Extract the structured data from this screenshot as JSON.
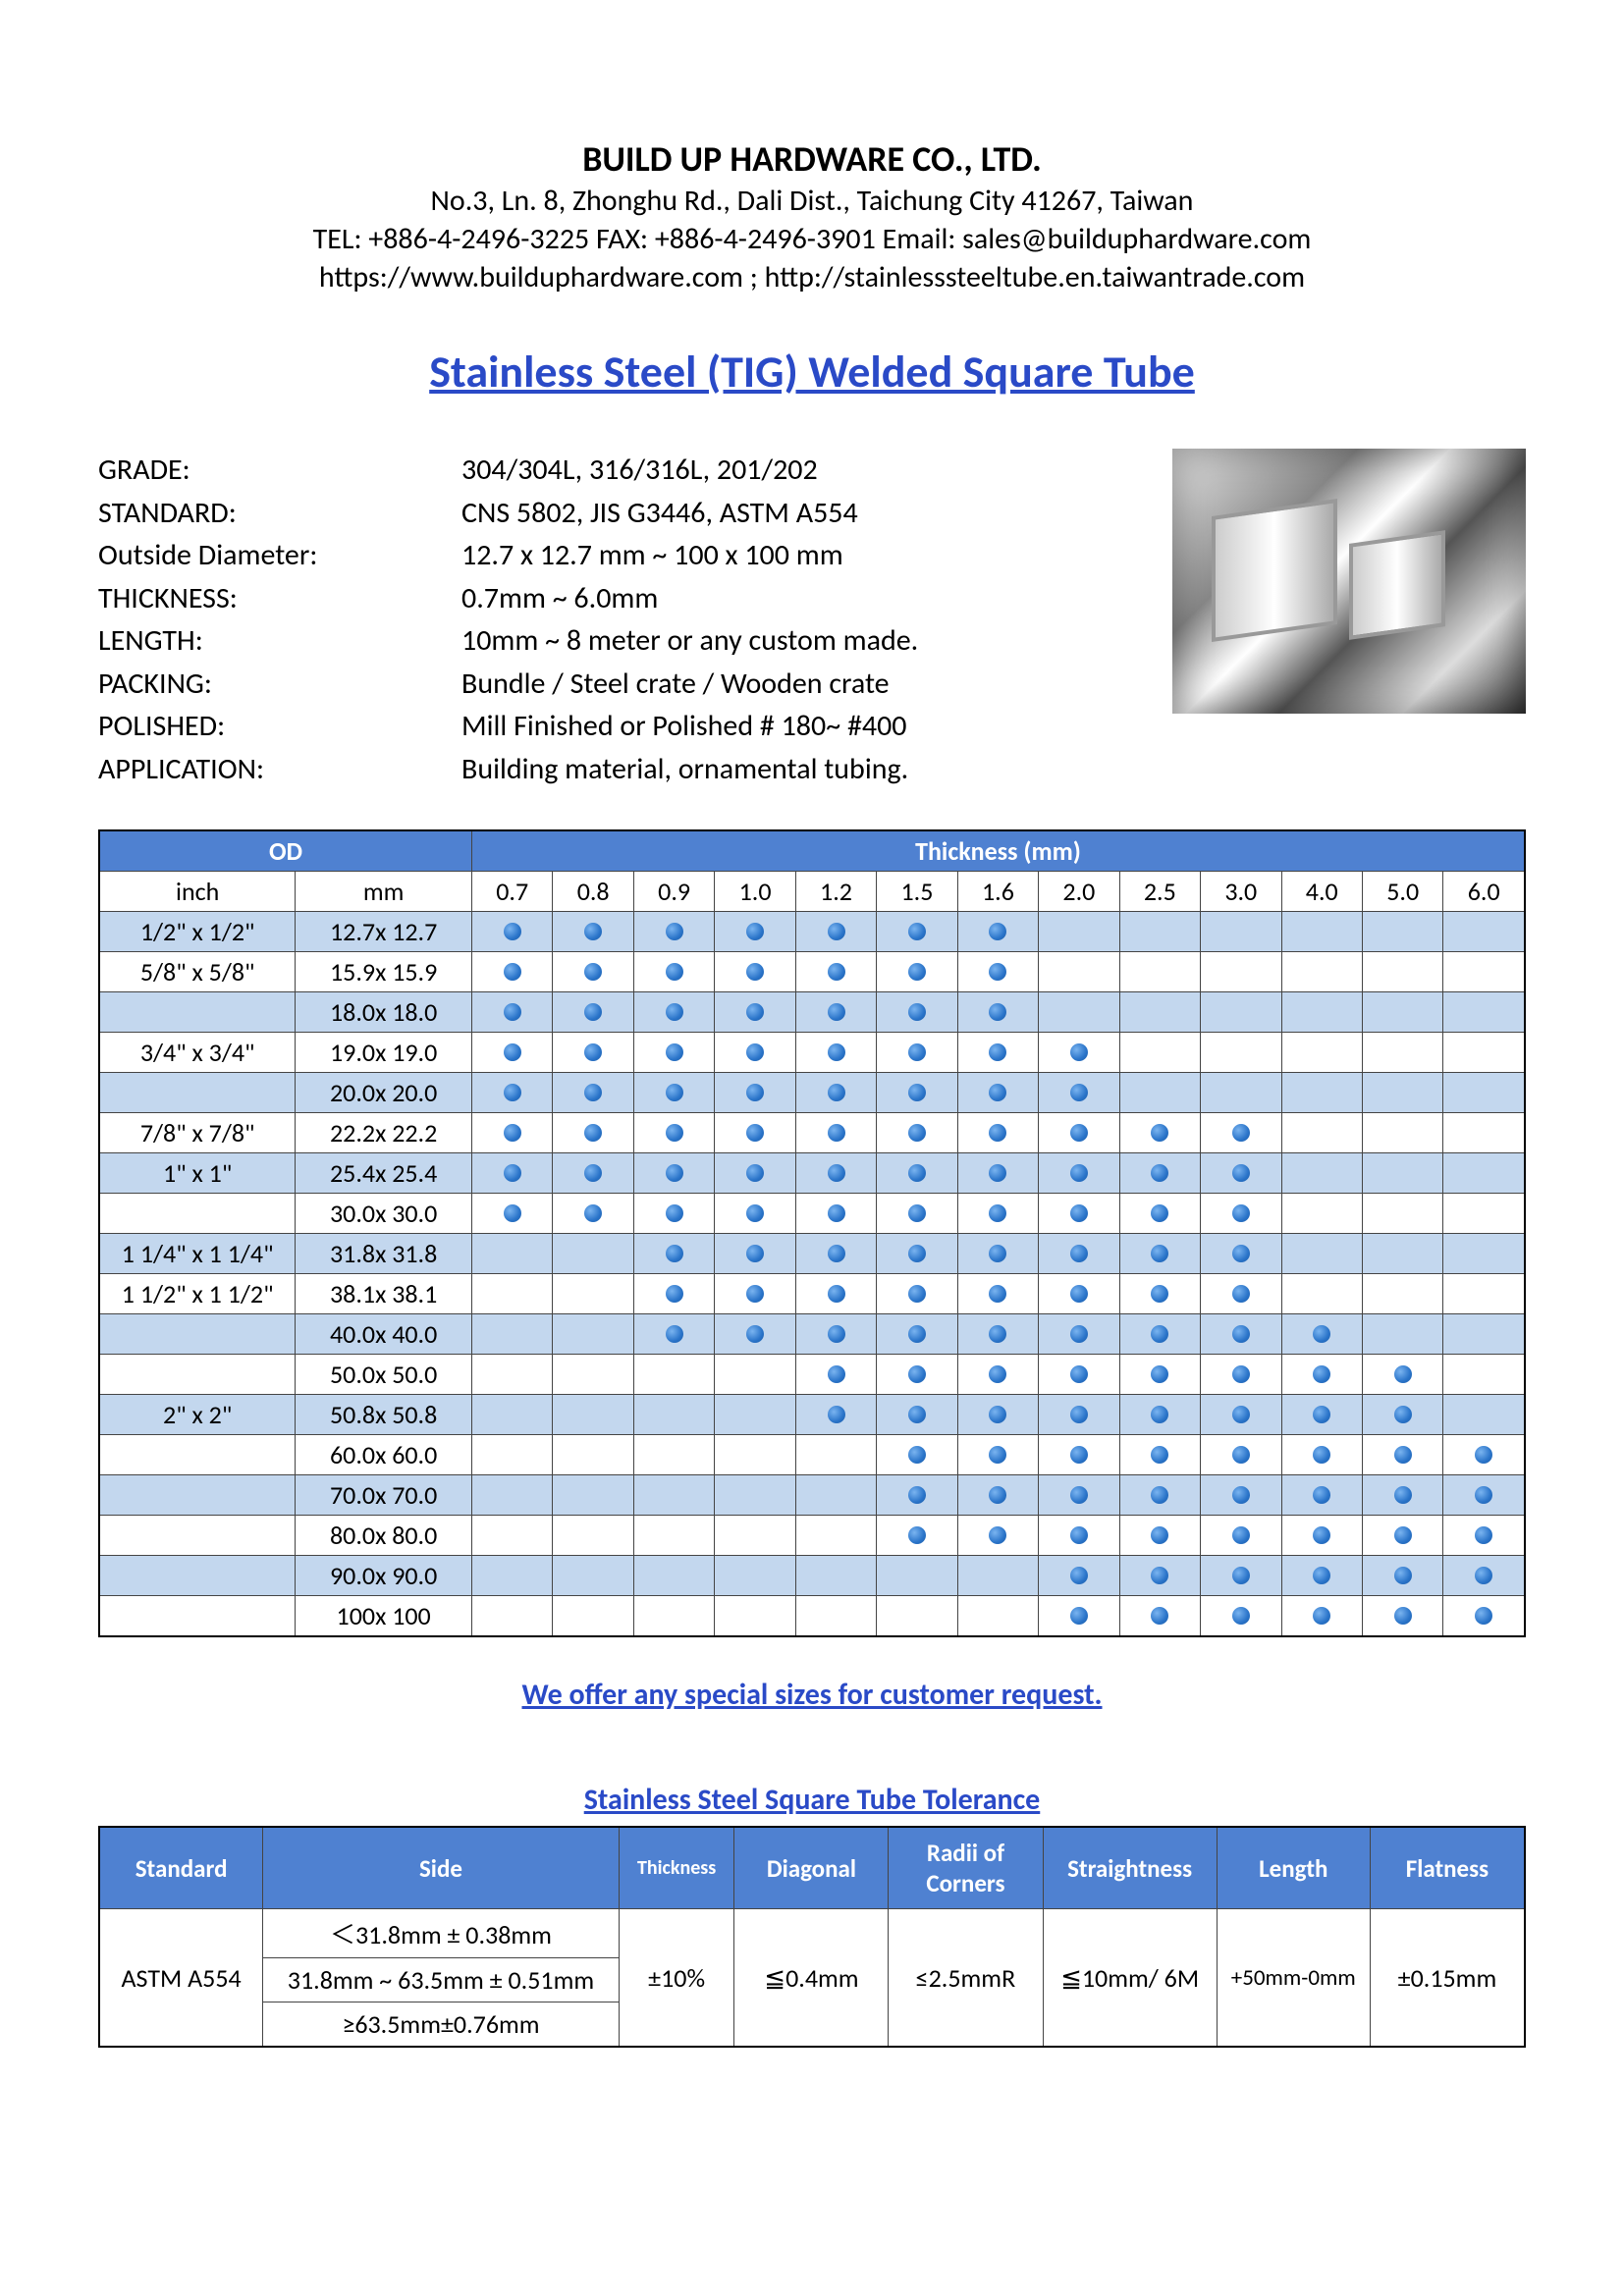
{
  "header": {
    "company": "BUILD UP HARDWARE CO., LTD.",
    "address": "No.3, Ln. 8, Zhonghu Rd., Dali Dist., Taichung City 41267, Taiwan",
    "contact": "TEL: +886-4-2496-3225  FAX: +886-4-2496-3901  Email: sales@builduphardware.com",
    "web": "https://www.builduphardware.com ;  http://stainlesssteeltube.en.taiwantrade.com"
  },
  "title": "Stainless Steel (TIG) Welded Square Tube",
  "specs": [
    {
      "label": "GRADE:",
      "value": "304/304L, 316/316L, 201/202"
    },
    {
      "label": "STANDARD:",
      "value": "CNS 5802, JIS G3446, ASTM A554"
    },
    {
      "label": "Outside Diameter:",
      "value": "12.7 x 12.7 mm ~ 100 x 100 mm"
    },
    {
      "label": "THICKNESS:",
      "value": "0.7mm ~ 6.0mm"
    },
    {
      "label": "LENGTH:",
      "value": "10mm ~ 8 meter or any custom made."
    },
    {
      "label": "PACKING:",
      "value": "Bundle / Steel crate / Wooden crate"
    },
    {
      "label": "POLISHED:",
      "value": "Mill Finished or Polished # 180~ #400"
    },
    {
      "label": "APPLICATION:",
      "value": "Building material, ornamental tubing."
    }
  ],
  "size_table": {
    "header_od": "OD",
    "header_thick": "Thickness (mm)",
    "sub_inch": "inch",
    "sub_mm": "mm",
    "thicknesses": [
      "0.7",
      "0.8",
      "0.9",
      "1.0",
      "1.2",
      "1.5",
      "1.6",
      "2.0",
      "2.5",
      "3.0",
      "4.0",
      "5.0",
      "6.0"
    ],
    "rows": [
      {
        "inch": "1/2\" x 1/2\"",
        "mm": "12.7x 12.7",
        "dots": [
          1,
          1,
          1,
          1,
          1,
          1,
          1,
          0,
          0,
          0,
          0,
          0,
          0
        ]
      },
      {
        "inch": "5/8\" x 5/8\"",
        "mm": "15.9x 15.9",
        "dots": [
          1,
          1,
          1,
          1,
          1,
          1,
          1,
          0,
          0,
          0,
          0,
          0,
          0
        ]
      },
      {
        "inch": "",
        "mm": "18.0x 18.0",
        "dots": [
          1,
          1,
          1,
          1,
          1,
          1,
          1,
          0,
          0,
          0,
          0,
          0,
          0
        ]
      },
      {
        "inch": "3/4\" x 3/4\"",
        "mm": "19.0x 19.0",
        "dots": [
          1,
          1,
          1,
          1,
          1,
          1,
          1,
          1,
          0,
          0,
          0,
          0,
          0
        ]
      },
      {
        "inch": "",
        "mm": "20.0x 20.0",
        "dots": [
          1,
          1,
          1,
          1,
          1,
          1,
          1,
          1,
          0,
          0,
          0,
          0,
          0
        ]
      },
      {
        "inch": "7/8\" x 7/8\"",
        "mm": "22.2x 22.2",
        "dots": [
          1,
          1,
          1,
          1,
          1,
          1,
          1,
          1,
          1,
          1,
          0,
          0,
          0
        ]
      },
      {
        "inch": "1\" x 1\"",
        "mm": "25.4x 25.4",
        "dots": [
          1,
          1,
          1,
          1,
          1,
          1,
          1,
          1,
          1,
          1,
          0,
          0,
          0
        ]
      },
      {
        "inch": "",
        "mm": "30.0x 30.0",
        "dots": [
          1,
          1,
          1,
          1,
          1,
          1,
          1,
          1,
          1,
          1,
          0,
          0,
          0
        ]
      },
      {
        "inch": "1 1/4\" x 1 1/4\"",
        "mm": "31.8x 31.8",
        "dots": [
          0,
          0,
          1,
          1,
          1,
          1,
          1,
          1,
          1,
          1,
          0,
          0,
          0
        ]
      },
      {
        "inch": "1 1/2\" x 1 1/2\"",
        "mm": "38.1x 38.1",
        "dots": [
          0,
          0,
          1,
          1,
          1,
          1,
          1,
          1,
          1,
          1,
          0,
          0,
          0
        ]
      },
      {
        "inch": "",
        "mm": "40.0x 40.0",
        "dots": [
          0,
          0,
          1,
          1,
          1,
          1,
          1,
          1,
          1,
          1,
          1,
          0,
          0
        ]
      },
      {
        "inch": "",
        "mm": "50.0x 50.0",
        "dots": [
          0,
          0,
          0,
          0,
          1,
          1,
          1,
          1,
          1,
          1,
          1,
          1,
          0
        ]
      },
      {
        "inch": "2\" x 2\"",
        "mm": "50.8x 50.8",
        "dots": [
          0,
          0,
          0,
          0,
          1,
          1,
          1,
          1,
          1,
          1,
          1,
          1,
          0
        ]
      },
      {
        "inch": "",
        "mm": "60.0x 60.0",
        "dots": [
          0,
          0,
          0,
          0,
          0,
          1,
          1,
          1,
          1,
          1,
          1,
          1,
          1
        ]
      },
      {
        "inch": "",
        "mm": "70.0x 70.0",
        "dots": [
          0,
          0,
          0,
          0,
          0,
          1,
          1,
          1,
          1,
          1,
          1,
          1,
          1
        ]
      },
      {
        "inch": "",
        "mm": "80.0x 80.0",
        "dots": [
          0,
          0,
          0,
          0,
          0,
          1,
          1,
          1,
          1,
          1,
          1,
          1,
          1
        ]
      },
      {
        "inch": "",
        "mm": "90.0x 90.0",
        "dots": [
          0,
          0,
          0,
          0,
          0,
          0,
          0,
          1,
          1,
          1,
          1,
          1,
          1
        ]
      },
      {
        "inch": "",
        "mm": "100x 100",
        "dots": [
          0,
          0,
          0,
          0,
          0,
          0,
          0,
          1,
          1,
          1,
          1,
          1,
          1
        ]
      }
    ]
  },
  "note": "We offer any special sizes for customer request.",
  "tolerance": {
    "title": "Stainless Steel Square Tube Tolerance",
    "headers": [
      "Standard",
      "Side",
      "Thickness",
      "Diagonal",
      "Radii of Corners",
      "Straightness",
      "Length",
      "Flatness"
    ],
    "standard": "ASTM A554",
    "sides": [
      "＜31.8mm ± 0.38mm",
      "31.8mm ~ 63.5mm ± 0.51mm",
      "≥63.5mm±0.76mm"
    ],
    "thickness": "±10%",
    "diagonal": "≦0.4mm",
    "radii": "≤2.5mmR",
    "straightness": "≦10mm/ 6M",
    "length": "+50mm-0mm",
    "flatness": "±0.15mm"
  }
}
